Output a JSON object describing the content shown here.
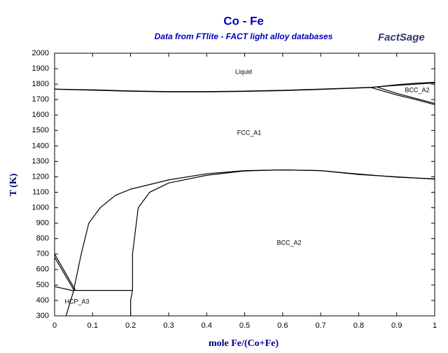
{
  "chart_data": {
    "type": "line",
    "title": "Co - Fe",
    "subtitle": "Data from FTlite - FACT light alloy databases",
    "logo": "FactSage",
    "xlabel": "mole Fe/(Co+Fe)",
    "ylabel": "T (K)",
    "xlim": [
      0,
      1
    ],
    "xticks": [
      0,
      0.1,
      0.2,
      0.3,
      0.4,
      0.5,
      0.6,
      0.7,
      0.8,
      0.9,
      1
    ],
    "ylim": [
      300,
      2000
    ],
    "yticks": [
      300,
      400,
      500,
      600,
      700,
      800,
      900,
      1000,
      1100,
      1200,
      1300,
      1400,
      1500,
      1600,
      1700,
      1800,
      1900,
      2000
    ],
    "annotations": [
      "Liquid",
      "FCC_A1",
      "BCC_A2",
      "BCC_A2",
      "HCP_A3"
    ],
    "series": [
      {
        "color": "#000000",
        "x": [
          0,
          0.1,
          0.2,
          0.3,
          0.4,
          0.5,
          0.6,
          0.7,
          0.8,
          0.84
        ],
        "values": [
          1768,
          1763,
          1756,
          1752,
          1752,
          1755,
          1760,
          1768,
          1776,
          1780
        ]
      },
      {
        "color": "#000000",
        "x": [
          0,
          0.1,
          0.2,
          0.3,
          0.4,
          0.5,
          0.6,
          0.7,
          0.8,
          0.84
        ],
        "values": [
          1767,
          1761,
          1754,
          1750,
          1750,
          1753,
          1758,
          1766,
          1775,
          1779
        ]
      },
      {
        "color": "#000000",
        "x": [
          0.84,
          0.9,
          0.95,
          1
        ],
        "values": [
          1780,
          1796,
          1806,
          1812
        ]
      },
      {
        "color": "#000000",
        "x": [
          0.84,
          0.9,
          0.95,
          1
        ],
        "values": [
          1781,
          1792,
          1800,
          1808
        ]
      },
      {
        "color": "#000000",
        "x": [
          0.83,
          0.9,
          0.95,
          1
        ],
        "values": [
          1780,
          1730,
          1700,
          1667
        ]
      },
      {
        "color": "#000000",
        "x": [
          0.85,
          0.9,
          0.95,
          1
        ],
        "values": [
          1780,
          1740,
          1708,
          1675
        ]
      },
      {
        "color": "#000000",
        "x": [
          0.05,
          0.07,
          0.09,
          0.12,
          0.16,
          0.2,
          0.3,
          0.4,
          0.5,
          0.6,
          0.7,
          0.8,
          0.9,
          1
        ],
        "values": [
          465,
          700,
          900,
          1000,
          1080,
          1120,
          1180,
          1220,
          1240,
          1245,
          1240,
          1215,
          1200,
          1185
        ]
      },
      {
        "color": "#000000",
        "x": [
          0.2,
          0.2,
          0.205,
          0.205,
          0.21,
          0.22,
          0.25,
          0.3,
          0.4,
          0.5,
          0.6,
          0.7,
          0.8,
          0.9,
          1
        ],
        "values": [
          300,
          400,
          465,
          700,
          800,
          1000,
          1100,
          1160,
          1210,
          1238,
          1245,
          1240,
          1218,
          1198,
          1187
        ]
      },
      {
        "color": "#000000",
        "x": [
          0.05,
          0.205
        ],
        "values": [
          465,
          465
        ]
      },
      {
        "color": "#000000",
        "x": [
          0,
          0.055
        ],
        "values": [
          700,
          465
        ]
      },
      {
        "color": "#000000",
        "x": [
          0,
          0.05
        ],
        "values": [
          680,
          470
        ]
      },
      {
        "color": "#000000",
        "x": [
          0,
          0.05
        ],
        "values": [
          490,
          462
        ]
      },
      {
        "color": "#000000",
        "x": [
          0.05,
          0.03
        ],
        "values": [
          462,
          300
        ]
      }
    ]
  }
}
